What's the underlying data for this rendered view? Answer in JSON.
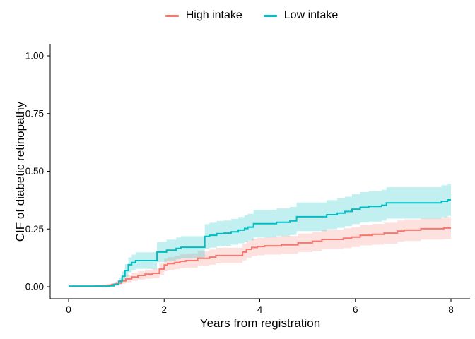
{
  "legend": {
    "items": [
      {
        "label": "High intake",
        "color": "#F8766D"
      },
      {
        "label": "Low intake",
        "color": "#00BFC4"
      }
    ]
  },
  "axes": {
    "x": {
      "title": "Years from registration",
      "tick_labels": [
        "0",
        "2",
        "4",
        "6",
        "8"
      ],
      "tick_values": [
        0,
        2,
        4,
        6,
        8
      ]
    },
    "y": {
      "title": "CIF of diabetic retinopathy",
      "tick_labels": [
        "0.00",
        "0.25",
        "0.50",
        "0.75",
        "1.00"
      ],
      "tick_values": [
        0,
        0.25,
        0.5,
        0.75,
        1.0
      ]
    }
  },
  "chart_data": {
    "type": "line",
    "subtype": "step-cumulative-incidence",
    "title": "",
    "xlabel": "Years from registration",
    "ylabel": "CIF of diabetic retinopathy",
    "xlim": [
      0,
      8
    ],
    "ylim": [
      0,
      1
    ],
    "grid": false,
    "legend_position": "top",
    "x_ticks": [
      0,
      2,
      4,
      6,
      8
    ],
    "y_ticks": [
      0,
      0.25,
      0.5,
      0.75,
      1.0
    ],
    "series": [
      {
        "name": "High intake",
        "color": "#F8766D",
        "band_color": "rgba(248,118,109,0.22)",
        "points_format": [
          "years",
          "cif",
          "ci_lower",
          "ci_upper"
        ],
        "points": [
          [
            0.0,
            0.002,
            0.002,
            0.002
          ],
          [
            0.55,
            0.003,
            0.001,
            0.007
          ],
          [
            0.8,
            0.006,
            0.002,
            0.012
          ],
          [
            0.9,
            0.01,
            0.004,
            0.019
          ],
          [
            1.0,
            0.016,
            0.007,
            0.028
          ],
          [
            1.1,
            0.025,
            0.013,
            0.04
          ],
          [
            1.2,
            0.034,
            0.019,
            0.051
          ],
          [
            1.32,
            0.042,
            0.025,
            0.06
          ],
          [
            1.45,
            0.049,
            0.031,
            0.068
          ],
          [
            1.6,
            0.054,
            0.035,
            0.074
          ],
          [
            1.75,
            0.058,
            0.038,
            0.079
          ],
          [
            1.9,
            0.076,
            0.052,
            0.1
          ],
          [
            2.0,
            0.094,
            0.067,
            0.121
          ],
          [
            2.07,
            0.1,
            0.072,
            0.128
          ],
          [
            2.22,
            0.105,
            0.076,
            0.134
          ],
          [
            2.33,
            0.11,
            0.08,
            0.14
          ],
          [
            2.45,
            0.113,
            0.082,
            0.144
          ],
          [
            2.7,
            0.123,
            0.091,
            0.156
          ],
          [
            2.95,
            0.128,
            0.095,
            0.161
          ],
          [
            3.08,
            0.135,
            0.101,
            0.169
          ],
          [
            3.64,
            0.15,
            0.114,
            0.186
          ],
          [
            3.72,
            0.162,
            0.125,
            0.199
          ],
          [
            3.83,
            0.17,
            0.132,
            0.208
          ],
          [
            3.95,
            0.174,
            0.136,
            0.212
          ],
          [
            4.1,
            0.177,
            0.139,
            0.215
          ],
          [
            4.45,
            0.181,
            0.142,
            0.22
          ],
          [
            4.8,
            0.19,
            0.15,
            0.23
          ],
          [
            5.1,
            0.197,
            0.156,
            0.238
          ],
          [
            5.3,
            0.205,
            0.163,
            0.247
          ],
          [
            5.75,
            0.21,
            0.167,
            0.253
          ],
          [
            5.92,
            0.215,
            0.172,
            0.258
          ],
          [
            6.1,
            0.223,
            0.179,
            0.267
          ],
          [
            6.35,
            0.227,
            0.182,
            0.272
          ],
          [
            6.6,
            0.232,
            0.187,
            0.277
          ],
          [
            6.88,
            0.241,
            0.195,
            0.287
          ],
          [
            7.02,
            0.245,
            0.198,
            0.292
          ],
          [
            7.37,
            0.251,
            0.204,
            0.298
          ],
          [
            7.85,
            0.254,
            0.206,
            0.302
          ],
          [
            8.0,
            0.254,
            0.206,
            0.302
          ]
        ]
      },
      {
        "name": "Low intake",
        "color": "#00BFC4",
        "band_color": "rgba(0,191,196,0.24)",
        "points_format": [
          "years",
          "cif",
          "ci_lower",
          "ci_upper"
        ],
        "points": [
          [
            0.0,
            0.002,
            0.002,
            0.002
          ],
          [
            0.85,
            0.004,
            0.001,
            0.01
          ],
          [
            0.95,
            0.01,
            0.004,
            0.02
          ],
          [
            1.05,
            0.024,
            0.012,
            0.04
          ],
          [
            1.12,
            0.045,
            0.026,
            0.066
          ],
          [
            1.18,
            0.07,
            0.044,
            0.097
          ],
          [
            1.25,
            0.095,
            0.063,
            0.127
          ],
          [
            1.32,
            0.105,
            0.071,
            0.139
          ],
          [
            1.4,
            0.113,
            0.077,
            0.149
          ],
          [
            1.85,
            0.15,
            0.106,
            0.194
          ],
          [
            2.05,
            0.158,
            0.112,
            0.204
          ],
          [
            2.25,
            0.166,
            0.119,
            0.213
          ],
          [
            2.35,
            0.171,
            0.123,
            0.219
          ],
          [
            2.85,
            0.218,
            0.165,
            0.271
          ],
          [
            2.95,
            0.223,
            0.169,
            0.277
          ],
          [
            3.1,
            0.23,
            0.175,
            0.285
          ],
          [
            3.25,
            0.232,
            0.177,
            0.287
          ],
          [
            3.4,
            0.238,
            0.182,
            0.294
          ],
          [
            3.55,
            0.245,
            0.188,
            0.302
          ],
          [
            3.68,
            0.252,
            0.194,
            0.31
          ],
          [
            3.75,
            0.258,
            0.2,
            0.316
          ],
          [
            3.87,
            0.273,
            0.213,
            0.333
          ],
          [
            4.35,
            0.279,
            0.219,
            0.339
          ],
          [
            4.63,
            0.285,
            0.224,
            0.346
          ],
          [
            4.77,
            0.303,
            0.241,
            0.365
          ],
          [
            5.4,
            0.312,
            0.249,
            0.375
          ],
          [
            5.62,
            0.319,
            0.255,
            0.383
          ],
          [
            5.78,
            0.326,
            0.262,
            0.39
          ],
          [
            5.93,
            0.336,
            0.271,
            0.401
          ],
          [
            6.1,
            0.344,
            0.278,
            0.41
          ],
          [
            6.28,
            0.348,
            0.282,
            0.414
          ],
          [
            6.55,
            0.353,
            0.286,
            0.42
          ],
          [
            6.65,
            0.363,
            0.295,
            0.431
          ],
          [
            7.8,
            0.37,
            0.301,
            0.439
          ],
          [
            7.93,
            0.376,
            0.306,
            0.446
          ],
          [
            8.0,
            0.376,
            0.306,
            0.446
          ]
        ]
      }
    ]
  }
}
